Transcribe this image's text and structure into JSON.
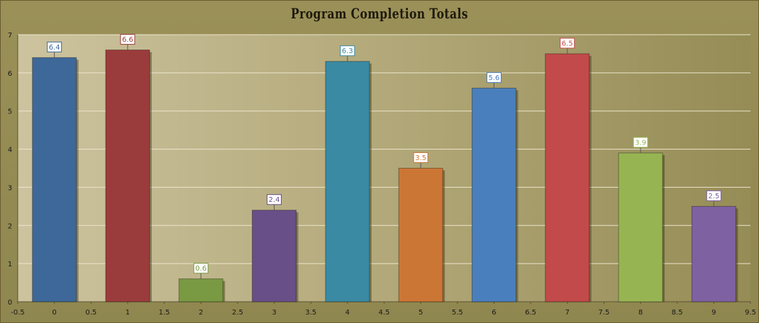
{
  "chart_data": {
    "type": "bar",
    "title": "Program Completion Totals",
    "xlabel": "",
    "ylabel": "",
    "x": [
      0,
      1,
      2,
      3,
      4,
      5,
      6,
      7,
      8,
      9
    ],
    "values": [
      6.4,
      6.6,
      0.6,
      2.4,
      6.3,
      3.5,
      5.6,
      6.5,
      3.9,
      2.5
    ],
    "colors": [
      "#3d6899",
      "#9b3c3c",
      "#7a9943",
      "#684f88",
      "#3a8aa3",
      "#cc7636",
      "#4a7fbd",
      "#c24a4a",
      "#96b552",
      "#7e61a1"
    ],
    "xlim": [
      -0.5,
      9.5
    ],
    "ylim": [
      0,
      7
    ],
    "x_ticks": [
      "-0.5",
      "0",
      "0.5",
      "1",
      "1.5",
      "2",
      "2.5",
      "3",
      "3.5",
      "4",
      "4.5",
      "5",
      "5.5",
      "6",
      "6.5",
      "7",
      "7.5",
      "8",
      "8.5",
      "9",
      "9.5"
    ],
    "y_ticks": [
      "0",
      "1",
      "2",
      "3",
      "4",
      "5",
      "6",
      "7"
    ],
    "data_labels": [
      "6.4",
      "6.6",
      "0.6",
      "2.4",
      "6.3",
      "3.5",
      "5.6",
      "6.5",
      "3.9",
      "2.5"
    ],
    "grid": true,
    "legend": "none"
  }
}
